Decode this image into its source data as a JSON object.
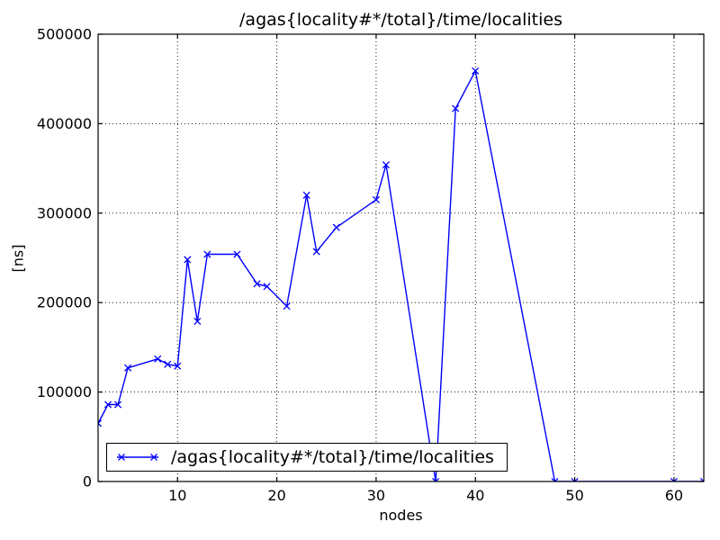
{
  "figure": {
    "background": "#ffffff",
    "frame_color": "#000000",
    "grid_color": "#000000"
  },
  "chart_data": {
    "type": "line",
    "title": "/agas{locality#*/total}/time/localities",
    "xlabel": "nodes",
    "ylabel": "[ns]",
    "xlim": [
      2,
      63
    ],
    "ylim": [
      0,
      500000
    ],
    "xtick_values": [
      10,
      20,
      30,
      40,
      50,
      60
    ],
    "xtick_labels": [
      "10",
      "20",
      "30",
      "40",
      "50",
      "60"
    ],
    "ytick_values": [
      0,
      100000,
      200000,
      300000,
      400000,
      500000
    ],
    "ytick_labels": [
      "0",
      "100000",
      "200000",
      "300000",
      "400000",
      "500000"
    ],
    "grid": true,
    "grid_style": "dotted",
    "line_color": "#0000ff",
    "marker": "x",
    "legend": {
      "position": "lower-left",
      "label": "/agas{locality#*/total}/time/localities",
      "marker": "x",
      "color": "#0000ff"
    },
    "series": [
      {
        "name": "/agas{locality#*/total}/time/localities",
        "color": "#0000ff",
        "marker": "x",
        "x": [
          2,
          3,
          4,
          5,
          8,
          9,
          10,
          11,
          12,
          13,
          16,
          18,
          19,
          21,
          23,
          24,
          26,
          30,
          31,
          36,
          38,
          40,
          48,
          50,
          60,
          63
        ],
        "y": [
          65000,
          86000,
          86000,
          127000,
          137000,
          131000,
          129000,
          248000,
          179000,
          254000,
          254000,
          221000,
          218000,
          196000,
          320000,
          257000,
          284000,
          315000,
          354000,
          0,
          417000,
          459000,
          0,
          0,
          0,
          0
        ]
      }
    ]
  }
}
